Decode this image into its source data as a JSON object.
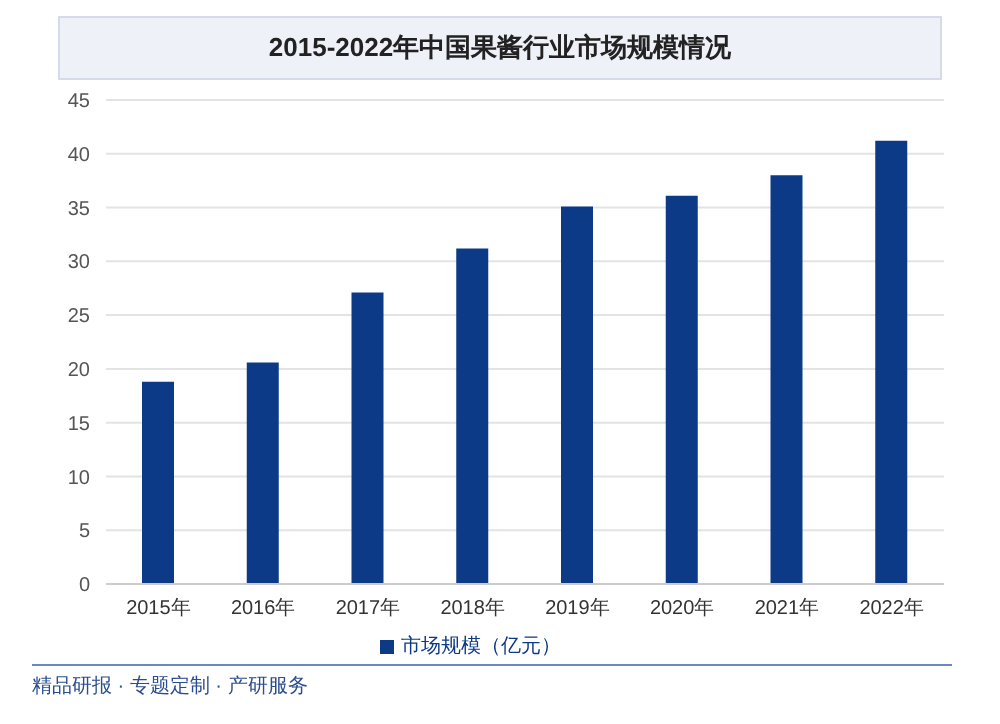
{
  "chart_data": {
    "type": "bar",
    "title": "2015-2022年中国果酱行业市场规模情况",
    "categories": [
      "2015年",
      "2016年",
      "2017年",
      "2018年",
      "2019年",
      "2020年",
      "2021年",
      "2022年"
    ],
    "series": [
      {
        "name": "市场规模（亿元）",
        "color": "#0d3a87",
        "values": [
          18.8,
          20.6,
          27.1,
          31.2,
          35.1,
          36.1,
          38.0,
          41.2
        ]
      }
    ],
    "ylim": [
      0,
      45
    ],
    "yticks": [
      0,
      5,
      10,
      15,
      20,
      25,
      30,
      35,
      40,
      45
    ],
    "grid": "y",
    "legend": "bottom",
    "annotations": [
      "精品研报 · 专题定制 · 产研服务"
    ]
  }
}
